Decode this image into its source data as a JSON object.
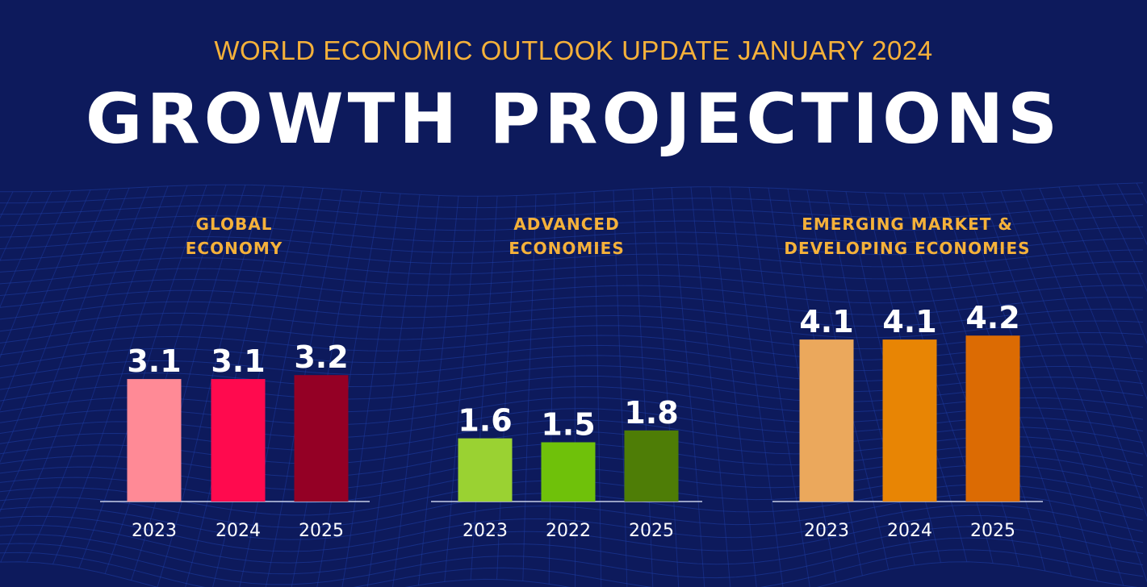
{
  "header": {
    "subtitle": "WORLD ECONOMIC OUTLOOK UPDATE JANUARY 2024",
    "title": "GROWTH PROJECTIONS"
  },
  "colors": {
    "background": "#0d1a5c",
    "mesh": "#1f3fa8",
    "heading_accent": "#f5b13a"
  },
  "chart_data": [
    {
      "type": "bar",
      "title": "GLOBAL\nECONOMY",
      "categories": [
        "2023",
        "2024",
        "2025"
      ],
      "values": [
        3.1,
        3.1,
        3.2
      ],
      "value_labels": [
        "3.1",
        "3.1",
        "3.2"
      ],
      "colors": [
        "#ff8a96",
        "#ff0a4e",
        "#940025"
      ],
      "ylim": [
        0,
        4.5
      ]
    },
    {
      "type": "bar",
      "title": "ADVANCED\nECONOMIES",
      "categories": [
        "2023",
        "2022",
        "2025"
      ],
      "values": [
        1.6,
        1.5,
        1.8
      ],
      "value_labels": [
        "1.6",
        "1.5",
        "1.8"
      ],
      "colors": [
        "#9ad232",
        "#6fc10a",
        "#4e7d06"
      ],
      "ylim": [
        0,
        4.5
      ]
    },
    {
      "type": "bar",
      "title": "EMERGING MARKET &\nDEVELOPING ECONOMIES",
      "categories": [
        "2023",
        "2024",
        "2025"
      ],
      "values": [
        4.1,
        4.1,
        4.2
      ],
      "value_labels": [
        "4.1",
        "4.1",
        "4.2"
      ],
      "colors": [
        "#eba85c",
        "#e88504",
        "#dc6b03"
      ],
      "ylim": [
        0,
        4.5
      ]
    }
  ]
}
